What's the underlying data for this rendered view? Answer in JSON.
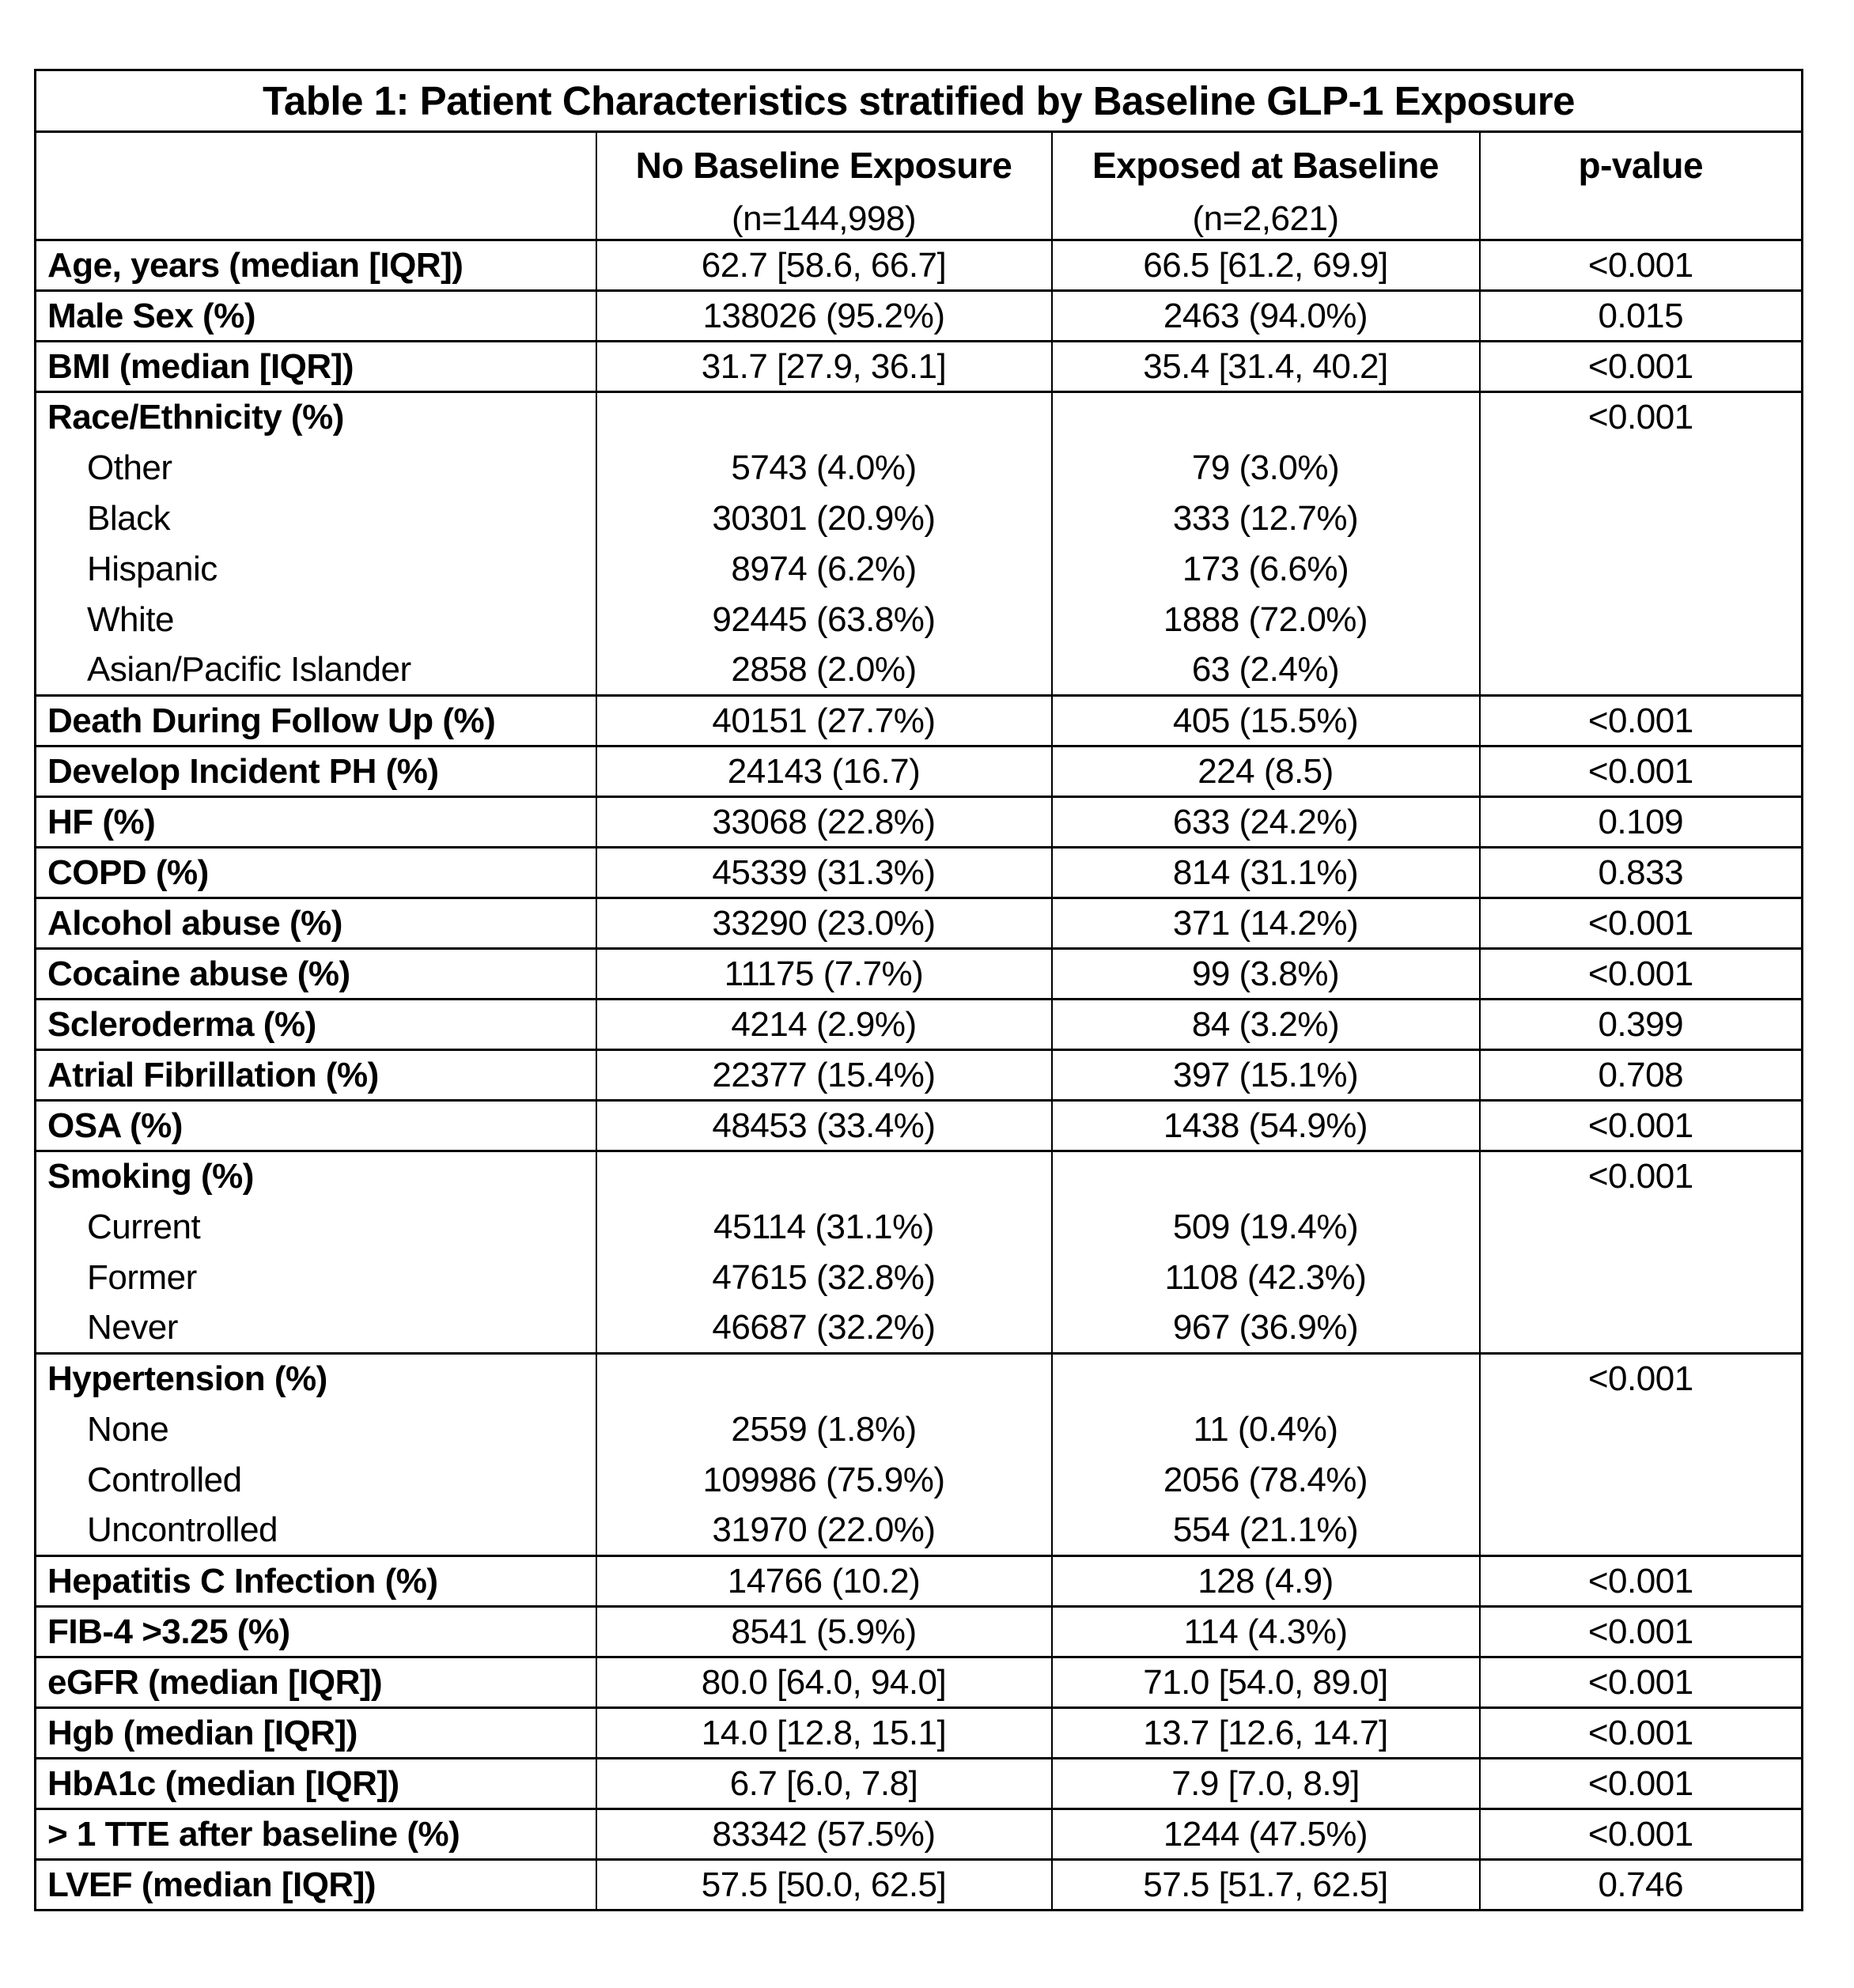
{
  "title": "Table 1: Patient Characteristics stratified by Baseline GLP-1 Exposure",
  "columns": {
    "group1": {
      "label": "No Baseline Exposure",
      "n": "(n=144,998)"
    },
    "group2": {
      "label": "Exposed at Baseline",
      "n": "(n=2,621)"
    },
    "pvalue": {
      "label": "p-value"
    }
  },
  "rows": [
    {
      "label": "Age, years (median [IQR])",
      "c1": "62.7 [58.6, 66.7]",
      "c2": "66.5 [61.2, 69.9]",
      "p": "<0.001"
    },
    {
      "label": "Male Sex (%)",
      "c1": "138026 (95.2%)",
      "c2": "2463 (94.0%)",
      "p": "0.015"
    },
    {
      "label": "BMI (median [IQR])",
      "c1": "31.7 [27.9, 36.1]",
      "c2": "35.4 [31.4, 40.2]",
      "p": "<0.001"
    },
    {
      "label": "Race/Ethnicity (%)",
      "c1": "",
      "c2": "",
      "p": "<0.001"
    },
    {
      "label": "Other",
      "sub": true,
      "c1": "5743 (4.0%)",
      "c2": "79 (3.0%)",
      "p": ""
    },
    {
      "label": "Black",
      "sub": true,
      "c1": "30301 (20.9%)",
      "c2": "333 (12.7%)",
      "p": ""
    },
    {
      "label": "Hispanic",
      "sub": true,
      "c1": "8974 (6.2%)",
      "c2": "173 (6.6%)",
      "p": ""
    },
    {
      "label": "White",
      "sub": true,
      "c1": "92445 (63.8%)",
      "c2": "1888 (72.0%)",
      "p": ""
    },
    {
      "label": "Asian/Pacific Islander",
      "sub": true,
      "c1": "2858 (2.0%)",
      "c2": "63 (2.4%)",
      "p": ""
    },
    {
      "label": "Death During Follow Up (%)",
      "c1": "40151 (27.7%)",
      "c2": "405 (15.5%)",
      "p": "<0.001"
    },
    {
      "label": "Develop Incident PH (%)",
      "c1": "24143 (16.7)",
      "c2": "224 (8.5)",
      "p": "<0.001"
    },
    {
      "label": "HF (%)",
      "c1": "33068 (22.8%)",
      "c2": "633 (24.2%)",
      "p": "0.109"
    },
    {
      "label": "COPD (%)",
      "c1": "45339 (31.3%)",
      "c2": "814 (31.1%)",
      "p": "0.833"
    },
    {
      "label": "Alcohol abuse (%)",
      "c1": "33290 (23.0%)",
      "c2": "371 (14.2%)",
      "p": "<0.001"
    },
    {
      "label": "Cocaine abuse (%)",
      "c1": "11175 (7.7%)",
      "c2": "99 (3.8%)",
      "p": "<0.001"
    },
    {
      "label": "Scleroderma (%)",
      "c1": "4214 (2.9%)",
      "c2": "84 (3.2%)",
      "p": "0.399"
    },
    {
      "label": "Atrial Fibrillation (%)",
      "c1": "22377 (15.4%)",
      "c2": "397 (15.1%)",
      "p": "0.708"
    },
    {
      "label": "OSA (%)",
      "c1": "48453 (33.4%)",
      "c2": "1438 (54.9%)",
      "p": "<0.001"
    },
    {
      "label": "Smoking (%)",
      "c1": "",
      "c2": "",
      "p": "<0.001"
    },
    {
      "label": "Current",
      "sub": true,
      "c1": "45114 (31.1%)",
      "c2": "509 (19.4%)",
      "p": ""
    },
    {
      "label": "Former",
      "sub": true,
      "c1": "47615 (32.8%)",
      "c2": "1108 (42.3%)",
      "p": ""
    },
    {
      "label": "Never",
      "sub": true,
      "c1": "46687 (32.2%)",
      "c2": "967 (36.9%)",
      "p": ""
    },
    {
      "label": "Hypertension (%)",
      "c1": "",
      "c2": "",
      "p": "<0.001"
    },
    {
      "label": "None",
      "sub": true,
      "c1": "2559 (1.8%)",
      "c2": "11 (0.4%)",
      "p": ""
    },
    {
      "label": "Controlled",
      "sub": true,
      "c1": "109986 (75.9%)",
      "c2": "2056 (78.4%)",
      "p": ""
    },
    {
      "label": "Uncontrolled",
      "sub": true,
      "c1": "31970 (22.0%)",
      "c2": "554 (21.1%)",
      "p": ""
    },
    {
      "label": "Hepatitis C Infection (%)",
      "c1": "14766 (10.2)",
      "c2": "128 (4.9)",
      "p": "<0.001"
    },
    {
      "label": "FIB-4 >3.25 (%)",
      "c1": "8541 (5.9%)",
      "c2": "114 (4.3%)",
      "p": "<0.001"
    },
    {
      "label": "eGFR (median [IQR])",
      "c1": "80.0 [64.0, 94.0]",
      "c2": "71.0 [54.0, 89.0]",
      "p": "<0.001"
    },
    {
      "label": "Hgb (median [IQR])",
      "c1": "14.0 [12.8, 15.1]",
      "c2": "13.7 [12.6, 14.7]",
      "p": "<0.001"
    },
    {
      "label": "HbA1c (median [IQR])",
      "c1": "6.7 [6.0, 7.8]",
      "c2": "7.9 [7.0, 8.9]",
      "p": "<0.001"
    },
    {
      "label": "> 1 TTE after baseline (%)",
      "c1": "83342 (57.5%)",
      "c2": "1244 (47.5%)",
      "p": "<0.001"
    },
    {
      "label": "LVEF (median [IQR])",
      "c1": "57.5 [50.0, 62.5]",
      "c2": "57.5 [51.7, 62.5]",
      "p": "0.746"
    }
  ]
}
